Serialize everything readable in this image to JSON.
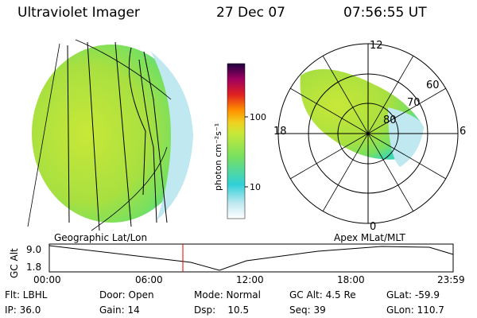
{
  "header": {
    "instrument": "Ultraviolet Imager",
    "date": "27 Dec 07",
    "time": "07:56:55 UT"
  },
  "colorbar": {
    "unit_label": "photon cm⁻²s⁻¹",
    "ticks": [
      "100",
      "10"
    ],
    "colors": [
      "#ffffff",
      "#bfe8f0",
      "#30d0d8",
      "#78e060",
      "#c8e838",
      "#f0d020",
      "#ff9000",
      "#e02020",
      "#a00060",
      "#200040"
    ]
  },
  "polar": {
    "top": "12",
    "bottom": "0",
    "left": "18",
    "right": "6",
    "lat_ticks": [
      "60",
      "70",
      "80"
    ]
  },
  "panel_labels": {
    "left": "Geographic Lat/Lon",
    "right": "Apex  MLat/MLT"
  },
  "alt_plot": {
    "ylabel": "GC Alt",
    "yticks": [
      "9.0",
      "1.8"
    ],
    "xticks": [
      "00:00",
      "06:00",
      "12:00",
      "18:00",
      "23:59"
    ]
  },
  "info": {
    "flt": "Flt: LBHL",
    "ip": "IP: 36.0",
    "door": "Door: Open",
    "gain": "Gain: 14",
    "mode": "Mode: Normal",
    "dsp": "Dsp:    10.5",
    "gcalt": "GC Alt: 4.5 Re",
    "seq": "Seq: 39",
    "glat": "GLat: -59.9",
    "glon": "GLon: 110.7"
  }
}
